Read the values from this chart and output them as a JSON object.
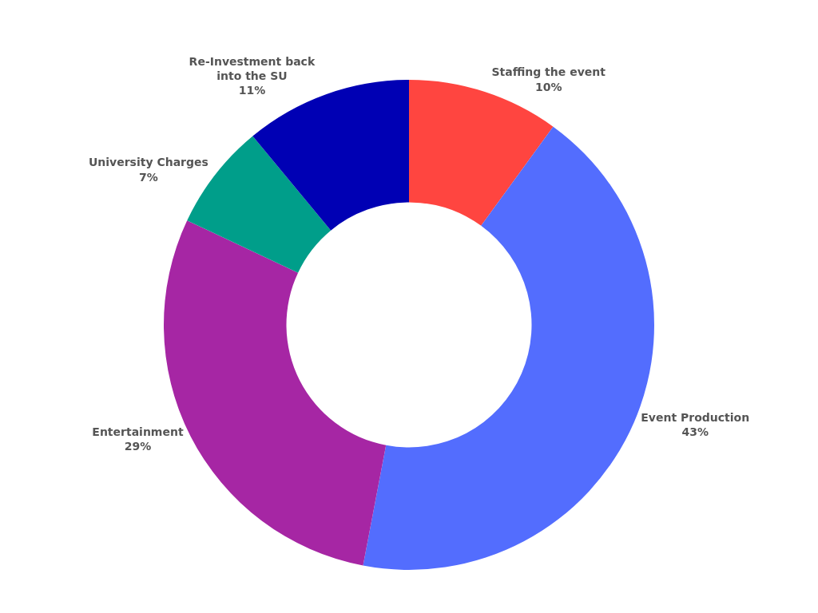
{
  "chart_data": {
    "type": "donut",
    "categories": [
      "Staffing the event",
      "Event Production",
      "Entertainment",
      "University Charges",
      "Re-Investment back into the SU"
    ],
    "values": [
      10,
      43,
      29,
      7,
      11
    ],
    "value_labels": [
      "10%",
      "43%",
      "29%",
      "7%",
      "11%"
    ],
    "colors": [
      "#ff4540",
      "#536dfe",
      "#a626a4",
      "#009e8a",
      "#0000b4"
    ],
    "legend": false
  }
}
